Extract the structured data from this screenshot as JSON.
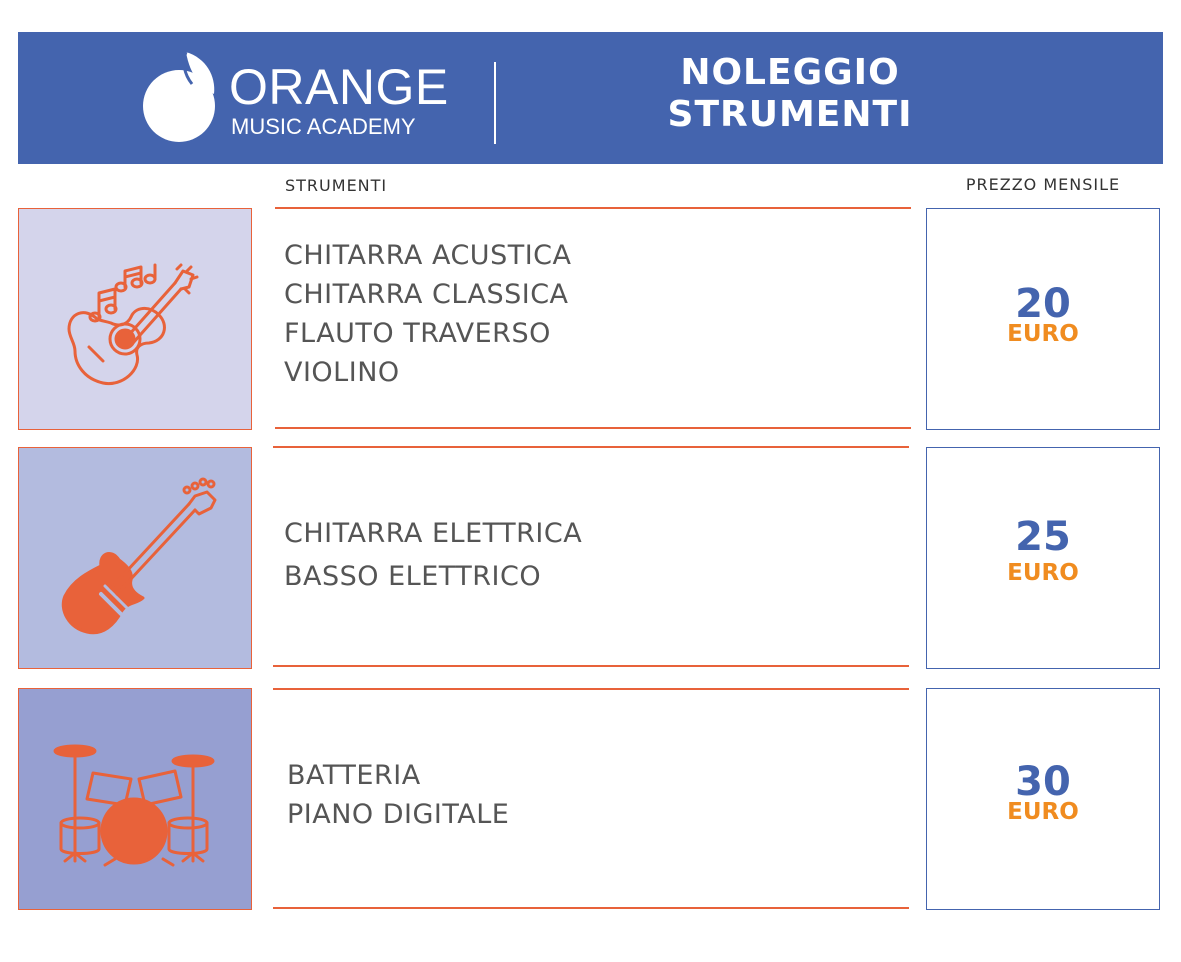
{
  "header": {
    "brand_name": "ORANGE",
    "brand_sub": "MUSIC ACADEMY",
    "title_line1": "NOLEGGIO",
    "title_line2": "STRUMENTI"
  },
  "columns": {
    "instruments": "STRUMENTI",
    "monthly_price": "PREZZO MENSILE"
  },
  "colors": {
    "brand_blue": "#4464ae",
    "accent_orange": "#e8623a",
    "price_unit_orange": "#f08c20"
  },
  "rows": [
    {
      "icon": "acoustic-guitar-icon",
      "items": [
        "CHITARRA ACUSTICA",
        "CHITARRA CLASSICA",
        "FLAUTO TRAVERSO",
        "VIOLINO"
      ],
      "price": "20",
      "unit": "EURO",
      "bg": "#d4d4eb"
    },
    {
      "icon": "electric-guitar-icon",
      "items": [
        "CHITARRA ELETTRICA",
        "BASSO ELETTRICO"
      ],
      "price": "25",
      "unit": "EURO",
      "bg": "#b3bbdf"
    },
    {
      "icon": "drum-kit-icon",
      "items": [
        "BATTERIA",
        "PIANO DIGITALE"
      ],
      "price": "30",
      "unit": "EURO",
      "bg": "#969fd1"
    }
  ]
}
